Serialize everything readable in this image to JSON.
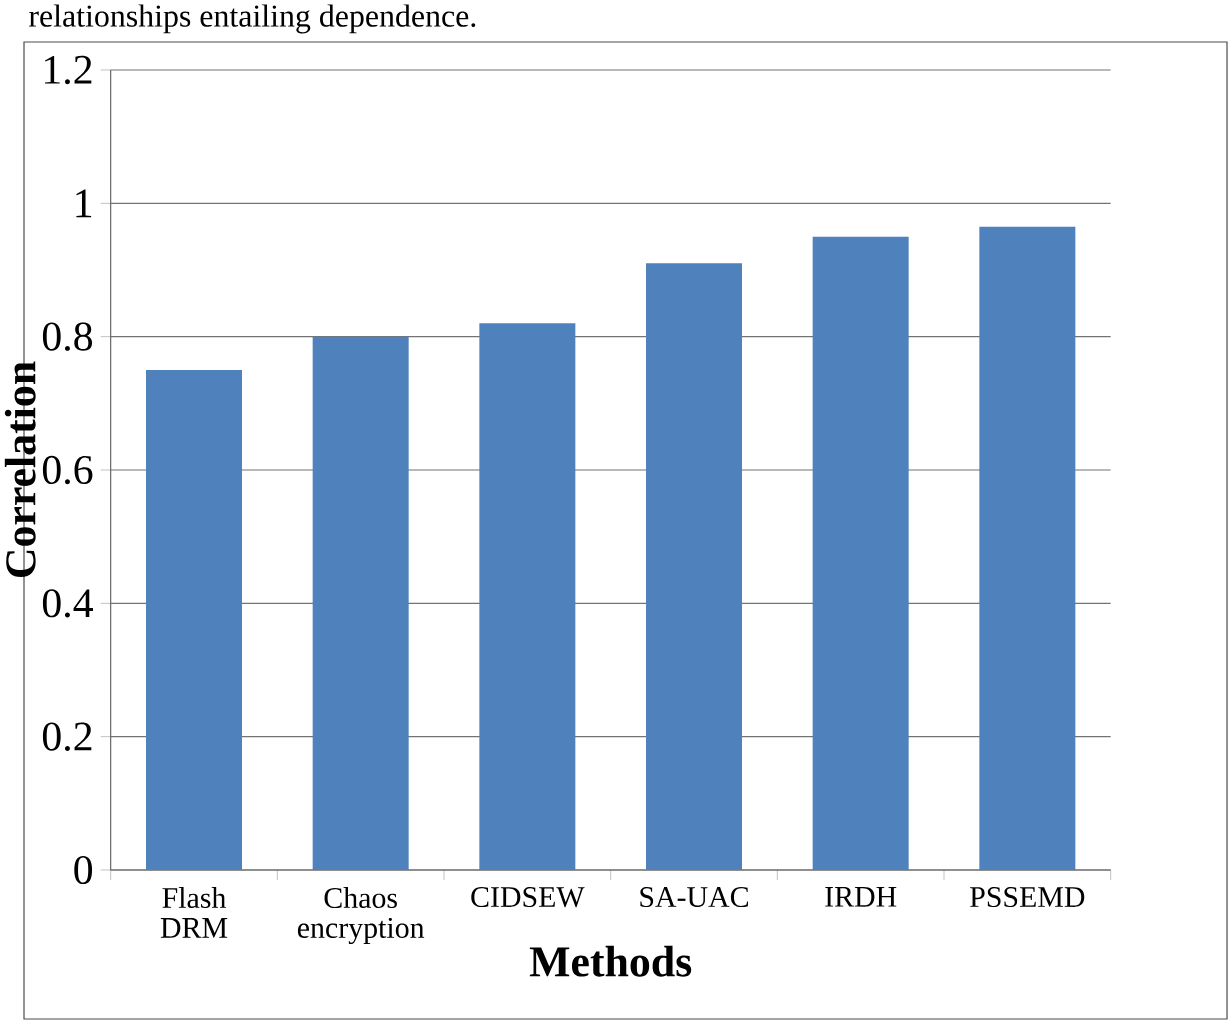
{
  "chart_data": {
    "type": "bar",
    "annotations": [
      "relationships entailing dependence."
    ],
    "xlabel": "Methods",
    "ylabel": "Correlation",
    "categories": [
      "Flash DRM",
      "Chaos encryption",
      "CIDSEW",
      "SA-UAC",
      "IRDH",
      "PSSEMD"
    ],
    "values": [
      0.75,
      0.8,
      0.82,
      0.91,
      0.95,
      0.965
    ],
    "color": "#4f81bd",
    "ylim": [
      0,
      1.2
    ],
    "yticks": [
      0,
      0.2,
      0.4,
      0.6,
      0.8,
      1,
      1.2
    ],
    "grid": "y"
  }
}
